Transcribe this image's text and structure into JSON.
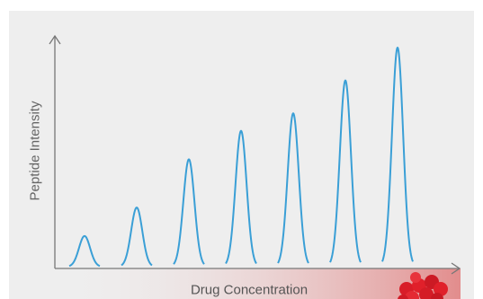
{
  "labels": {
    "y_axis": "Peptide Intensity",
    "x_axis": "Drug Concentration"
  },
  "colors": {
    "background": "#eeeeee",
    "axis": "#777777",
    "peak": "#3a9fd6",
    "gradient_end": "#e07b7b",
    "molecule": "#e0202a"
  },
  "peaks": {
    "count": 7,
    "relative_heights": [
      0.14,
      0.27,
      0.49,
      0.62,
      0.7,
      0.85,
      1.0
    ],
    "trend": "increasing with drug concentration"
  },
  "icons": {
    "drug": "drug-molecule-icon"
  }
}
